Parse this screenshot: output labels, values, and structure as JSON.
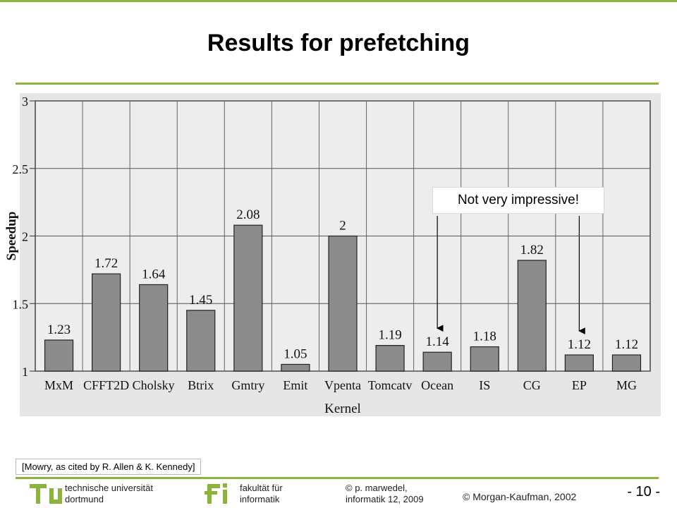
{
  "slide": {
    "title": "Results for prefetching",
    "callout": "Not very impressive!",
    "citation": "[Mowry, as cited by R. Allen & K. Kennedy]",
    "copyright": "© Morgan-Kaufman, 2002",
    "page_number": "- 10 -",
    "colors": {
      "accent": "#8cb43c",
      "bar": "#8c8c8c",
      "chart_bg": "#e6e6e6"
    }
  },
  "footer": {
    "uni_line1": "technische universität",
    "uni_line2": "dortmund",
    "fak_line1": "fakultät für",
    "fak_line2": "informatik",
    "author_line1": "© p. marwedel,",
    "author_line2": "informatik 12,  2009"
  },
  "chart_data": {
    "type": "bar",
    "categories": [
      "MxM",
      "CFFT2D",
      "Cholsky",
      "Btrix",
      "Gmtry",
      "Emit",
      "Vpenta",
      "Tomcatv",
      "Ocean",
      "IS",
      "CG",
      "EP",
      "MG"
    ],
    "values": [
      1.23,
      1.72,
      1.64,
      1.45,
      2.08,
      1.05,
      2,
      1.19,
      1.14,
      1.18,
      1.82,
      1.12,
      1.12
    ],
    "value_labels": [
      "1.23",
      "1.72",
      "1.64",
      "1.45",
      "2.08",
      "1.05",
      "2",
      "1.19",
      "1.14",
      "1.18",
      "1.82",
      "1.12",
      "1.12"
    ],
    "xlabel": "Kernel",
    "ylabel": "Speedup",
    "ylim": [
      1,
      3
    ],
    "yticks": [
      "1",
      "1.5",
      "2",
      "2.5",
      "3"
    ],
    "grid": true,
    "annotation_arrows_to": [
      "Ocean",
      "EP"
    ]
  }
}
